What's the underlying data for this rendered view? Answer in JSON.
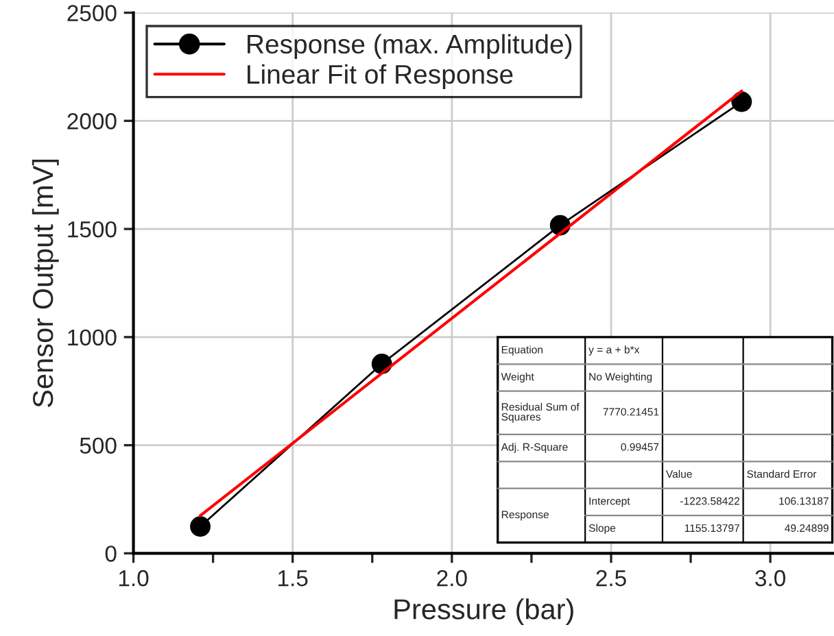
{
  "chart_data": {
    "type": "line",
    "xlabel": "Pressure (bar)",
    "ylabel": "Sensor Output [mV]",
    "xlim": [
      1.0,
      3.2
    ],
    "ylim": [
      0,
      2500
    ],
    "xticks": [
      {
        "value": 1,
        "label": "1.0"
      },
      {
        "value": 1.25,
        "label": null
      },
      1.5,
      {
        "value": 1.75,
        "label": null
      },
      {
        "value": 2,
        "label": "2.0"
      },
      {
        "value": 2.25,
        "label": null
      },
      2.5,
      {
        "value": 2.75,
        "label": null
      },
      {
        "value": 3,
        "label": "3.0"
      }
    ],
    "yticks": [
      0,
      500,
      1000,
      1500,
      2000,
      2500
    ],
    "grid": true,
    "legend": "top left",
    "series": [
      {
        "name": "Response (max. Amplitude)",
        "color": "#000000",
        "marker": "circle",
        "x": [
          1.21,
          1.78,
          2.34,
          2.91
        ],
        "values": [
          124,
          876,
          1517,
          2088
        ]
      },
      {
        "name": "Linear Fit of Response",
        "color": "#ff0000",
        "marker": "none",
        "x": [
          1.21,
          2.91
        ],
        "values": [
          174,
          2138
        ]
      }
    ],
    "annotations": [
      "Equation",
      "y = a + b*x",
      "Weight",
      "No Weighting",
      "Residual Sum of\nSquares",
      "7770.21451",
      "Adj. R-Square",
      "0.99457",
      "Value",
      "Standard Error",
      "Response",
      "Intercept",
      "-1223.58422",
      "106.13187",
      "Slope",
      "1155.13797",
      "49.24899"
    ]
  }
}
